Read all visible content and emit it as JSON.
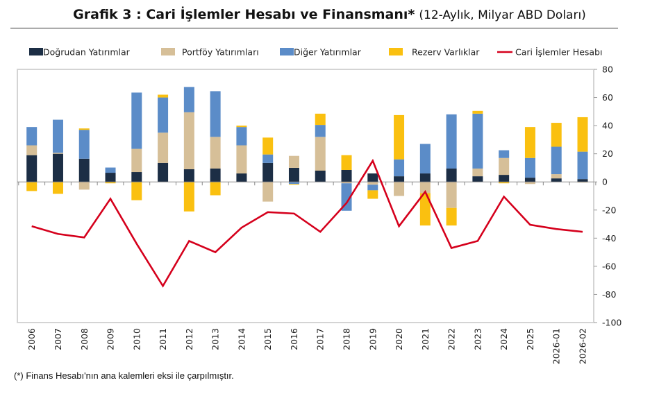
{
  "title": {
    "bold": "Grafik 3 : Cari İşlemler Hesabı ve Finansmanı*",
    "subtitle": "(12-Aylık, Milyar ABD Doları)"
  },
  "footnote": "(*) Finans Hesabı'nın ana kalemleri eksi ile çarpılmıştır.",
  "chart_data": {
    "type": "bar",
    "stacked": true,
    "categories": [
      "2006",
      "2007",
      "2008",
      "2009",
      "2010",
      "2011",
      "2012",
      "2013",
      "2014",
      "2015",
      "2016",
      "2017",
      "2018",
      "2019",
      "2020",
      "2021",
      "2022",
      "2023",
      "2024",
      "2025",
      "2026-01",
      "2026-02"
    ],
    "ylim": [
      -100,
      80
    ],
    "yticks": [
      80,
      60,
      40,
      20,
      0,
      -20,
      -40,
      -60,
      -80,
      -100
    ],
    "y_axis_position": "right",
    "legend_position": "top",
    "grid": false,
    "series": [
      {
        "name": "Doğrudan Yatırımlar",
        "type": "bar",
        "color": "#1c2e45",
        "values": [
          19,
          20,
          16.5,
          6.5,
          7,
          13.5,
          9,
          9.5,
          6,
          13.5,
          10,
          8,
          8.5,
          6,
          4,
          6,
          9.5,
          4,
          5,
          3,
          2.5,
          2
        ]
      },
      {
        "name": "Portföy Yatırımları",
        "type": "bar",
        "color": "#d6bf98",
        "values": [
          7,
          0.7,
          -5.5,
          0,
          16.5,
          21.5,
          40.5,
          22.5,
          20,
          -14,
          8.5,
          24,
          -1,
          -2,
          -10,
          -8,
          -18.5,
          5.5,
          12,
          -1.5,
          3,
          -0.5
        ]
      },
      {
        "name": "Diğer Yatırımlar",
        "type": "bar",
        "color": "#5b8cc8",
        "values": [
          13,
          23.5,
          20.5,
          3.7,
          40,
          25,
          18,
          32.5,
          13,
          6,
          -1.5,
          8.5,
          -19.5,
          -4,
          12,
          21,
          38.5,
          39,
          5.5,
          14,
          19.5,
          19.5
        ]
      },
      {
        "name": "Rezerv Varlıklar",
        "type": "bar",
        "color": "#fac010",
        "values": [
          -6.5,
          -8.5,
          1,
          -1,
          -13,
          2,
          -21,
          -9.5,
          1,
          12,
          -0.5,
          8,
          10.5,
          -6,
          31.5,
          -23,
          -12.5,
          2,
          -1,
          22,
          17,
          24.5
        ]
      },
      {
        "name": "Cari İşlemler Hesabı",
        "type": "line",
        "color": "#d5001c",
        "values": [
          -31.5,
          -37,
          -39.5,
          -12,
          -44,
          -74,
          -42,
          -50,
          -32.5,
          -21.5,
          -22.5,
          -35.5,
          -15,
          15,
          -31.5,
          -7,
          -47,
          -42,
          -10.5,
          -30.5,
          -33.5,
          -35.5
        ]
      }
    ]
  }
}
